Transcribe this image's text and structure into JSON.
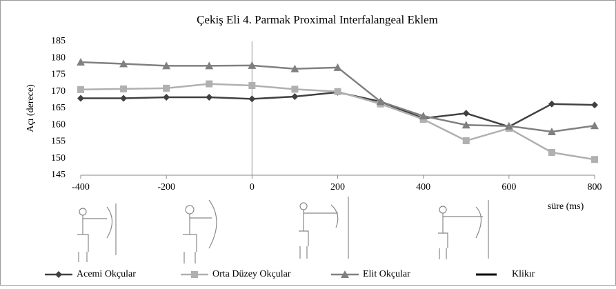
{
  "chart_data": {
    "type": "line",
    "title": "Çekiş Eli 4. Parmak Proximal  Interfalangeal Eklem",
    "x_label": "süre (ms)",
    "y_label": "Açı (derece)",
    "x": [
      -400,
      -300,
      -200,
      -100,
      0,
      100,
      200,
      300,
      400,
      500,
      600,
      700,
      800
    ],
    "series": [
      {
        "name": "Acemi Okçular",
        "color": "#404040",
        "marker": "diamond",
        "values": [
          168,
          168,
          168.3,
          168.3,
          167.8,
          168.5,
          169.8,
          167,
          162,
          163.5,
          159.5,
          166.3,
          166
        ]
      },
      {
        "name": "Orta Düzey Okçular",
        "color": "#b0b0b0",
        "marker": "square",
        "values": [
          170.6,
          170.8,
          171,
          172.3,
          171.8,
          170.7,
          170,
          166.3,
          161.7,
          155.3,
          159,
          151.8,
          149.7
        ]
      },
      {
        "name": "Elit Okçular",
        "color": "#808080",
        "marker": "triangle",
        "values": [
          178.8,
          178.3,
          177.7,
          177.7,
          177.8,
          176.8,
          177.2,
          167,
          162.7,
          160,
          159.7,
          158,
          159.8
        ]
      }
    ],
    "vline": {
      "name": "Klikır",
      "x": 0,
      "color": "#000000"
    },
    "xlim": [
      -400,
      800
    ],
    "xticks": [
      -400,
      -200,
      0,
      200,
      400,
      600,
      800
    ],
    "ylim": [
      145,
      185
    ],
    "yticks": [
      145,
      150,
      155,
      160,
      165,
      170,
      175,
      180,
      185
    ]
  }
}
